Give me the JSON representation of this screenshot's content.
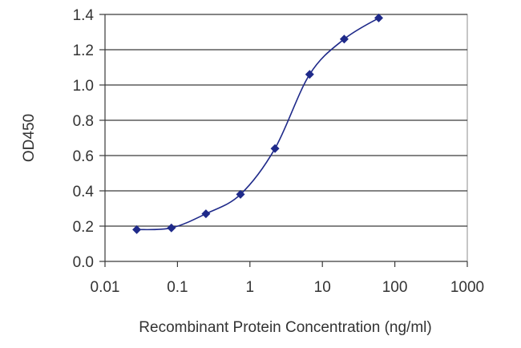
{
  "chart_data": {
    "type": "line",
    "xlabel": "Recombinant Protein Concentration (ng/ml)",
    "ylabel": "OD450",
    "x_scale": "log",
    "xlim": [
      0.01,
      1000
    ],
    "ylim": [
      0.0,
      1.4
    ],
    "x_ticks": [
      "0.01",
      "0.1",
      "1",
      "10",
      "100",
      "1000"
    ],
    "y_ticks": [
      "0.0",
      "0.2",
      "0.4",
      "0.6",
      "0.8",
      "1.0",
      "1.2",
      "1.4"
    ],
    "grid": "horizontal",
    "series_color": "#1f2a8a",
    "series": [
      {
        "x": [
          0.0274,
          0.0823,
          0.247,
          0.741,
          2.22,
          6.67,
          20,
          60
        ],
        "y": [
          0.18,
          0.19,
          0.27,
          0.38,
          0.64,
          1.06,
          1.26,
          1.38
        ]
      }
    ]
  }
}
